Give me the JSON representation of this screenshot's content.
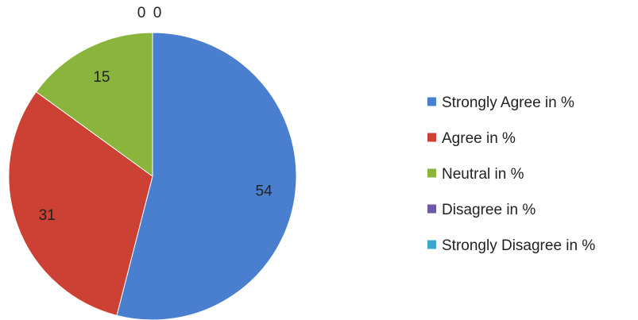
{
  "chart_data": {
    "type": "pie",
    "start_angle_deg": 0,
    "direction": "clockwise",
    "legend_position": "right",
    "slices": [
      {
        "label": "Strongly Agree in %",
        "value": 54,
        "value_label": "54",
        "color": "#4a7fd0"
      },
      {
        "label": "Agree in %",
        "value": 31,
        "value_label": "31",
        "color": "#cc4133"
      },
      {
        "label": "Neutral in %",
        "value": 15,
        "value_label": "15",
        "color": "#8ab43c"
      },
      {
        "label": "Disagree in %",
        "value": 0,
        "value_label": "0",
        "color": "#6e58a8"
      },
      {
        "label": "Strongly Disagree in %",
        "value": 0,
        "value_label": "0",
        "color": "#3aa7cf"
      }
    ]
  }
}
